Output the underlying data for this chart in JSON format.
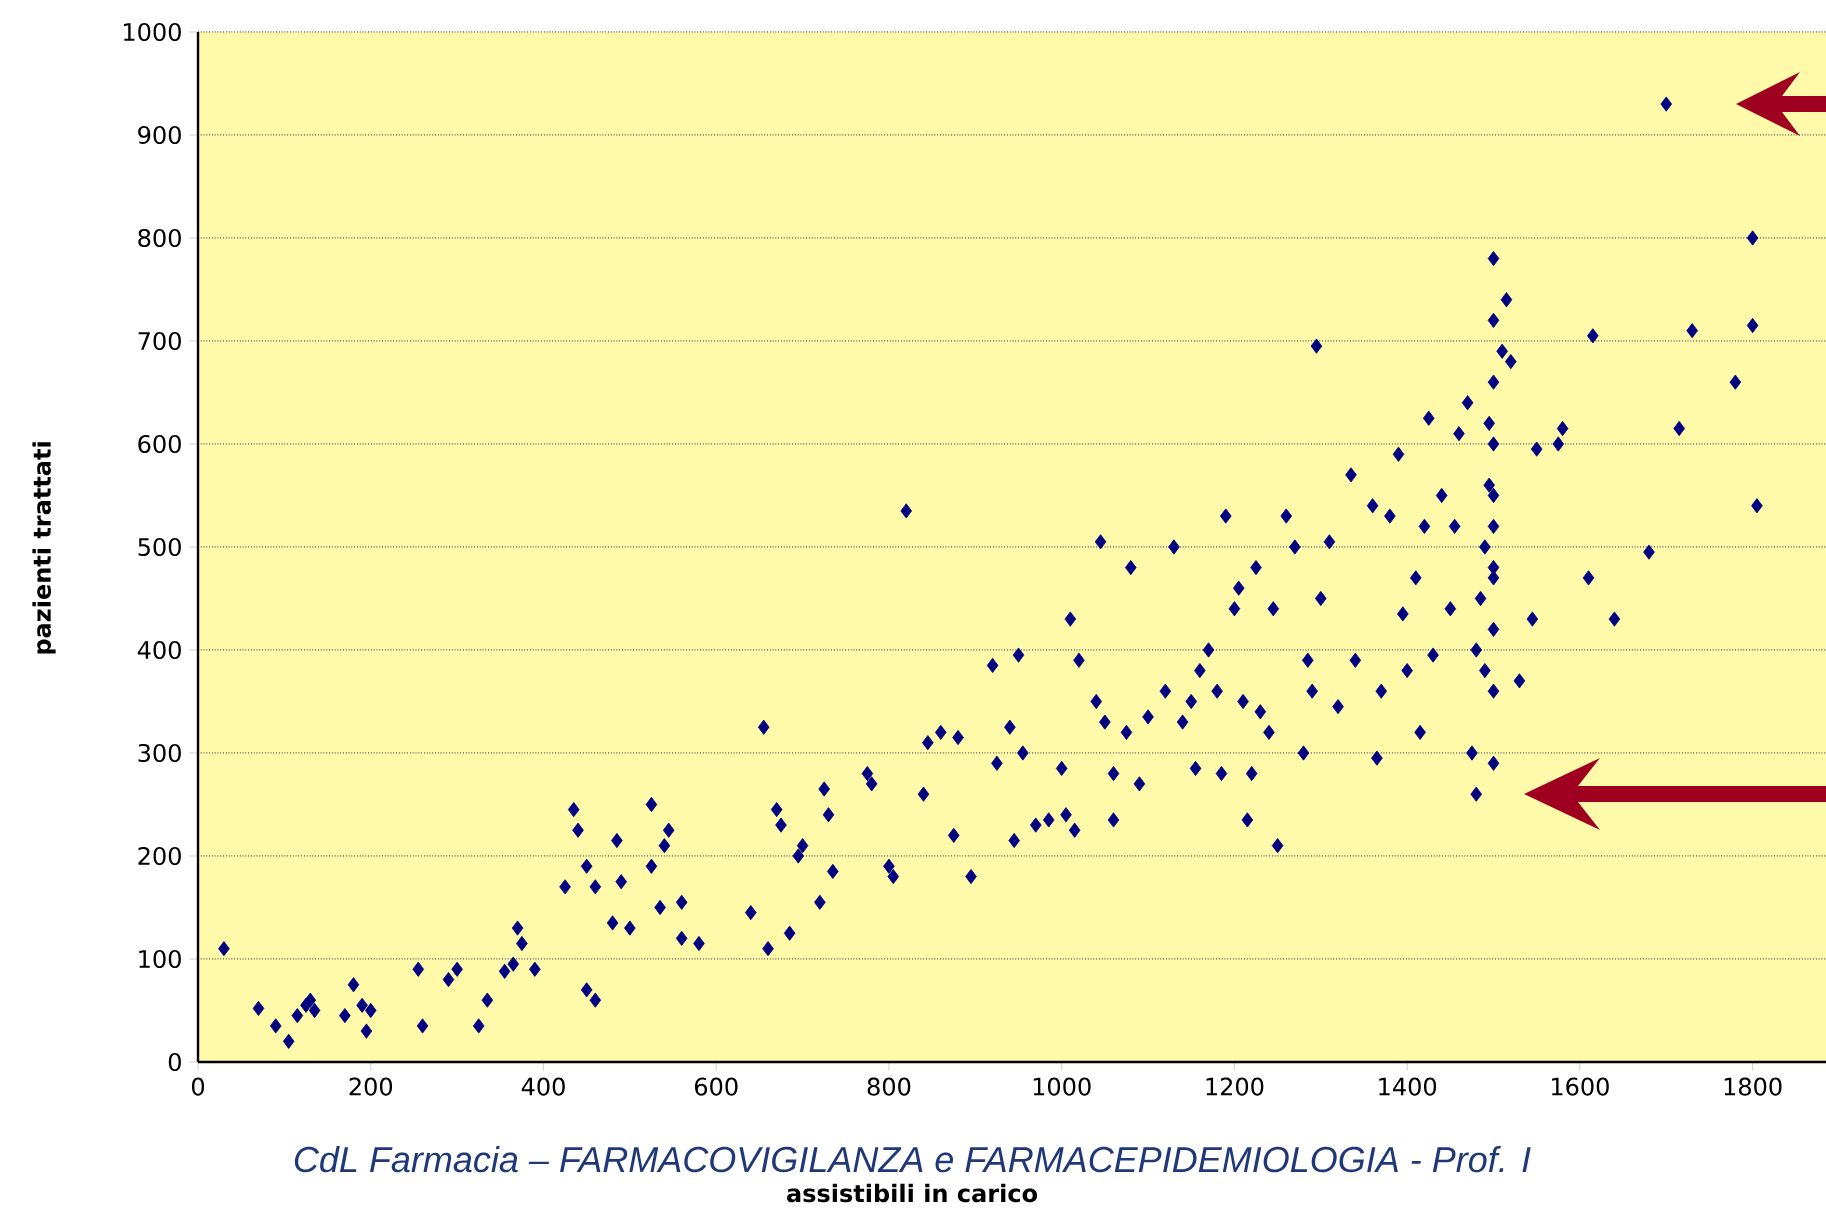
{
  "chart_data": {
    "type": "scatter",
    "xlabel": "assistibili in carico",
    "ylabel": "pazienti trattati",
    "annotations": [
      "CdL Farmacia – FARMACOVIGILANZA e FARMACEPIDEMIOLOGIA - Prof. I"
    ],
    "xlim": [
      0,
      1885
    ],
    "ylim": [
      0,
      1000
    ],
    "xticks": [
      0,
      200,
      400,
      600,
      800,
      1000,
      1200,
      1400,
      1600,
      1800
    ],
    "yticks": [
      0,
      100,
      200,
      300,
      400,
      500,
      600,
      700,
      800,
      900,
      1000
    ],
    "grid": "y",
    "marker": "diamond",
    "series": [
      {
        "color": "#000080",
        "x": [
          30,
          70,
          90,
          105,
          115,
          125,
          130,
          135,
          170,
          180,
          190,
          195,
          200,
          255,
          260,
          290,
          300,
          325,
          335,
          355,
          365,
          370,
          375,
          390,
          425,
          435,
          440,
          450,
          450,
          460,
          460,
          480,
          485,
          490,
          500,
          525,
          525,
          535,
          540,
          545,
          560,
          560,
          580,
          640,
          655,
          660,
          670,
          675,
          685,
          695,
          700,
          720,
          725,
          730,
          735,
          775,
          780,
          800,
          805,
          820,
          840,
          845,
          860,
          875,
          880,
          895,
          920,
          925,
          940,
          945,
          950,
          955,
          970,
          985,
          1000,
          1005,
          1010,
          1015,
          1020,
          1040,
          1045,
          1050,
          1060,
          1060,
          1075,
          1080,
          1090,
          1100,
          1120,
          1130,
          1140,
          1150,
          1155,
          1160,
          1170,
          1180,
          1185,
          1190,
          1200,
          1205,
          1210,
          1215,
          1220,
          1225,
          1230,
          1240,
          1250,
          1245,
          1260,
          1270,
          1280,
          1285,
          1290,
          1295,
          1300,
          1310,
          1320,
          1335,
          1340,
          1360,
          1365,
          1370,
          1380,
          1390,
          1395,
          1400,
          1410,
          1415,
          1420,
          1425,
          1430,
          1440,
          1450,
          1455,
          1460,
          1470,
          1475,
          1480,
          1480,
          1485,
          1490,
          1490,
          1495,
          1495,
          1500,
          1500,
          1500,
          1500,
          1500,
          1500,
          1500,
          1500,
          1500,
          1500,
          1500,
          1510,
          1515,
          1520,
          1530,
          1545,
          1550,
          1575,
          1580,
          1610,
          1615,
          1640,
          1680,
          1700,
          1715,
          1730,
          1780,
          1800,
          1800,
          1805
        ],
        "values": [
          110,
          52,
          35,
          20,
          45,
          55,
          60,
          50,
          45,
          75,
          55,
          30,
          50,
          90,
          35,
          80,
          90,
          35,
          60,
          88,
          95,
          130,
          115,
          90,
          170,
          245,
          225,
          190,
          70,
          60,
          170,
          135,
          215,
          175,
          130,
          250,
          190,
          150,
          210,
          225,
          155,
          120,
          115,
          145,
          325,
          110,
          245,
          230,
          125,
          200,
          210,
          155,
          265,
          240,
          185,
          280,
          270,
          190,
          180,
          535,
          260,
          310,
          320,
          220,
          315,
          180,
          385,
          290,
          325,
          215,
          395,
          300,
          230,
          235,
          285,
          240,
          430,
          225,
          390,
          350,
          505,
          330,
          280,
          235,
          320,
          480,
          270,
          335,
          360,
          500,
          330,
          350,
          285,
          380,
          400,
          360,
          280,
          530,
          440,
          460,
          350,
          235,
          280,
          480,
          340,
          320,
          210,
          440,
          530,
          500,
          300,
          390,
          360,
          695,
          450,
          505,
          345,
          570,
          390,
          540,
          295,
          360,
          530,
          590,
          435,
          380,
          470,
          320,
          520,
          625,
          395,
          550,
          440,
          520,
          610,
          640,
          300,
          260,
          400,
          450,
          380,
          500,
          560,
          620,
          780,
          720,
          660,
          600,
          550,
          520,
          480,
          470,
          420,
          360,
          290,
          690,
          740,
          680,
          370,
          430,
          595,
          600,
          615,
          470,
          705,
          430,
          495,
          930,
          615,
          710,
          660,
          800,
          715,
          540
        ]
      }
    ]
  }
}
